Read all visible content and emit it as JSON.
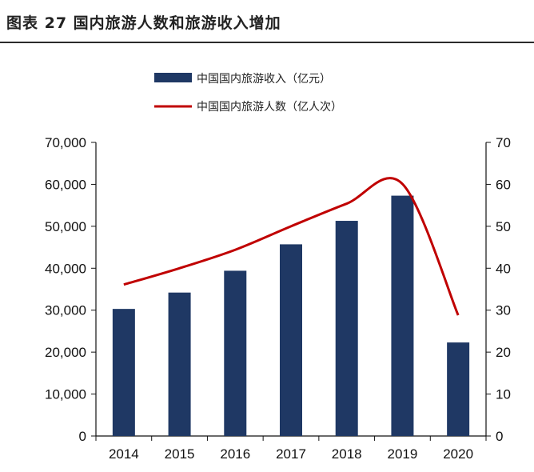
{
  "header": {
    "title": "图表 27  国内旅游人数和旅游收入增加"
  },
  "chart_data": {
    "type": "bar",
    "categories": [
      "2014",
      "2015",
      "2016",
      "2017",
      "2018",
      "2019",
      "2020"
    ],
    "series": [
      {
        "name": "中国国内旅游收入（亿元）",
        "type": "bar",
        "axis": "left",
        "color": "#1f3864",
        "values": [
          30300,
          34200,
          39400,
          45700,
          51300,
          57300,
          22300
        ]
      },
      {
        "name": "中国国内旅游人数（亿人次）",
        "type": "line",
        "axis": "right",
        "color": "#c00000",
        "values": [
          36.1,
          40.0,
          44.4,
          50.0,
          55.4,
          60.1,
          28.8
        ]
      }
    ],
    "y_left": {
      "min": 0,
      "max": 70000,
      "step": 10000,
      "ticks": [
        "0",
        "10,000",
        "20,000",
        "30,000",
        "40,000",
        "50,000",
        "60,000",
        "70,000"
      ]
    },
    "y_right": {
      "min": 0,
      "max": 70,
      "step": 10,
      "ticks": [
        "0",
        "10",
        "20",
        "30",
        "40",
        "50",
        "60",
        "70"
      ]
    },
    "legend": "top",
    "grid": false
  }
}
